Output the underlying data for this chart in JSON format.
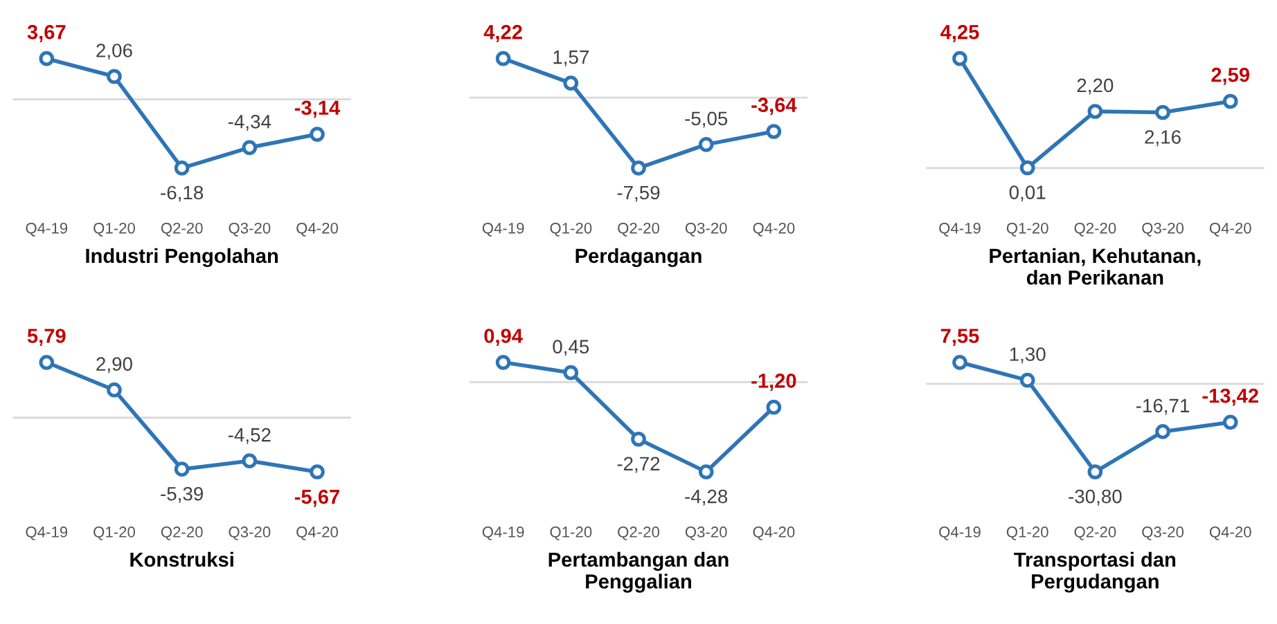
{
  "chart_data": [
    {
      "type": "line",
      "xlabel": "Industri Pengolahan",
      "categories": [
        "Q4-19",
        "Q1-20",
        "Q2-20",
        "Q3-20",
        "Q4-20"
      ],
      "series": [
        {
          "color": "#2e75b6",
          "values": [
            3.67,
            2.06,
            -6.18,
            -4.34,
            -3.14
          ],
          "value_labels": [
            "3,67",
            "2,06",
            "-6,18",
            "-4,34",
            "-3,14"
          ]
        }
      ],
      "marker": "circle",
      "ref_lines": [
        {
          "axis": "y",
          "value": 0,
          "color": "#d9d9d9"
        }
      ],
      "grid": false,
      "legend": false,
      "tick_labels": "x"
    },
    {
      "type": "line",
      "xlabel": "Perdagangan",
      "categories": [
        "Q4-19",
        "Q1-20",
        "Q2-20",
        "Q3-20",
        "Q4-20"
      ],
      "series": [
        {
          "color": "#2e75b6",
          "values": [
            4.22,
            1.57,
            -7.59,
            -5.05,
            -3.64
          ],
          "value_labels": [
            "4,22",
            "1,57",
            "-7,59",
            "-5,05",
            "-3,64"
          ]
        }
      ],
      "marker": "circle",
      "ref_lines": [
        {
          "axis": "y",
          "value": 0,
          "color": "#d9d9d9"
        }
      ],
      "grid": false,
      "legend": false,
      "tick_labels": "x"
    },
    {
      "type": "line",
      "xlabel": "Pertanian, Kehutanan,\ndan Perikanan",
      "categories": [
        "Q4-19",
        "Q1-20",
        "Q2-20",
        "Q3-20",
        "Q4-20"
      ],
      "series": [
        {
          "color": "#2e75b6",
          "values": [
            4.25,
            0.01,
            2.2,
            2.16,
            2.59
          ],
          "value_labels": [
            "4,25",
            "0,01",
            "2,20",
            "2,16",
            "2,59"
          ]
        }
      ],
      "marker": "circle",
      "ref_lines": [
        {
          "axis": "y",
          "value": 0,
          "color": "#d9d9d9"
        }
      ],
      "grid": false,
      "legend": false,
      "tick_labels": "x"
    },
    {
      "type": "line",
      "xlabel": "Konstruksi",
      "categories": [
        "Q4-19",
        "Q1-20",
        "Q2-20",
        "Q3-20",
        "Q4-20"
      ],
      "series": [
        {
          "color": "#2e75b6",
          "values": [
            5.79,
            2.9,
            -5.39,
            -4.52,
            -5.67
          ],
          "value_labels": [
            "5,79",
            "2,90",
            "-5,39",
            "-4,52",
            "-5,67"
          ]
        }
      ],
      "marker": "circle",
      "ref_lines": [
        {
          "axis": "y",
          "value": 0,
          "color": "#d9d9d9"
        }
      ],
      "grid": false,
      "legend": false,
      "tick_labels": "x"
    },
    {
      "type": "line",
      "xlabel": "Pertambangan dan\nPenggalian",
      "categories": [
        "Q4-19",
        "Q1-20",
        "Q2-20",
        "Q3-20",
        "Q4-20"
      ],
      "series": [
        {
          "color": "#2e75b6",
          "values": [
            0.94,
            0.45,
            -2.72,
            -4.28,
            -1.2
          ],
          "value_labels": [
            "0,94",
            "0,45",
            "-2,72",
            "-4,28",
            "-1,20"
          ]
        }
      ],
      "marker": "circle",
      "ref_lines": [
        {
          "axis": "y",
          "value": 0,
          "color": "#d9d9d9"
        }
      ],
      "grid": false,
      "legend": false,
      "tick_labels": "x"
    },
    {
      "type": "line",
      "xlabel": "Transportasi dan\nPergudangan",
      "categories": [
        "Q4-19",
        "Q1-20",
        "Q2-20",
        "Q3-20",
        "Q4-20"
      ],
      "series": [
        {
          "color": "#2e75b6",
          "values": [
            7.55,
            1.3,
            -30.8,
            -16.71,
            -13.42
          ],
          "value_labels": [
            "7,55",
            "1,30",
            "-30,80",
            "-16,71",
            "-13,42"
          ]
        }
      ],
      "marker": "circle",
      "ref_lines": [
        {
          "axis": "y",
          "value": 0,
          "color": "#d9d9d9"
        }
      ],
      "grid": false,
      "legend": false,
      "tick_labels": "x"
    }
  ]
}
